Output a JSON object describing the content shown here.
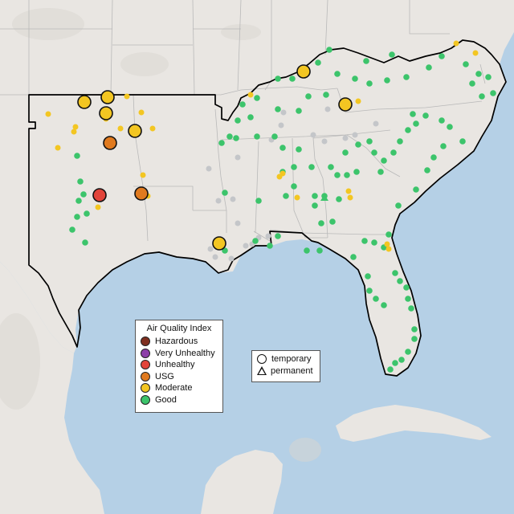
{
  "map": {
    "land_color": "#e9e6e2",
    "relief_color": "#d9d5d0",
    "water_color": "#b5d0e6",
    "state_border_color": "#b9b9b9",
    "region_outline_color": "#000000",
    "monitor_sites": {
      "good": 105,
      "moderate": 32,
      "usg": 2,
      "unhealthy": 1,
      "no_data": 21
    }
  },
  "legend": {
    "title": "Air Quality Index",
    "categories": [
      {
        "label": "Hazardous",
        "color": "#7e2f1f"
      },
      {
        "label": "Very Unhealthy",
        "color": "#8c3fa8"
      },
      {
        "label": "Unhealthy",
        "color": "#e2443a"
      },
      {
        "label": "USG",
        "color": "#e07a1f"
      },
      {
        "label": "Moderate",
        "color": "#f3c622"
      },
      {
        "label": "Good",
        "color": "#3cc46b"
      }
    ]
  },
  "monitor_legend": {
    "temporary": "temporary",
    "permanent": "permanent"
  },
  "no_data_color": "#c4c6c9"
}
